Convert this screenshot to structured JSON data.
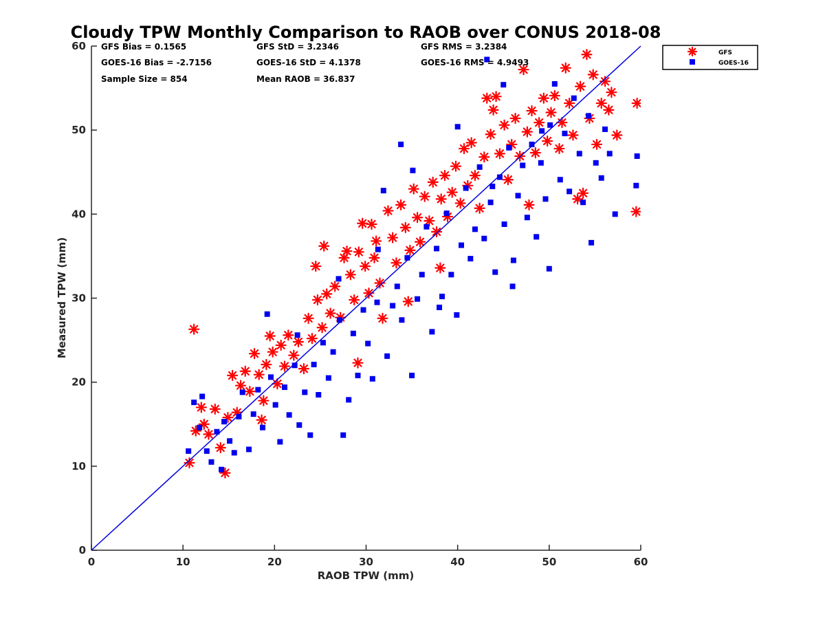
{
  "chart_data": {
    "type": "scatter",
    "title": "Cloudy TPW Monthly Comparison to RAOB over CONUS 2018-08",
    "xlabel": "RAOB TPW (mm)",
    "ylabel": "Measured TPW (mm)",
    "xlim": [
      0,
      60
    ],
    "ylim": [
      0,
      60
    ],
    "xticks": [
      "0",
      "10",
      "20",
      "30",
      "40",
      "50",
      "60"
    ],
    "yticks": [
      "0",
      "10",
      "20",
      "30",
      "40",
      "50",
      "60"
    ],
    "reference_line": {
      "type": "1:1",
      "x": [
        0,
        60
      ],
      "y": [
        0,
        60
      ],
      "color": "#0000dd"
    },
    "legend_position": "top-right, outside",
    "stats": {
      "gfs_bias": "GFS Bias = 0.1565",
      "gfs_std": "GFS StD = 3.2346",
      "gfs_rms": "GFS RMS = 3.2384",
      "goes_bias": "GOES-16 Bias = -2.7156",
      "goes_std": "GOES-16 StD = 4.1378",
      "goes_rms": "GOES-16 RMS = 4.9493",
      "sample_size": "Sample Size = 854",
      "mean_raob": "Mean RAOB = 36.837"
    },
    "series": [
      {
        "name": "GFS",
        "marker": "asterisk",
        "color": "#ff0000",
        "points": [
          [
            10.7,
            10.4
          ],
          [
            11.2,
            26.3
          ],
          [
            11.4,
            14.2
          ],
          [
            12,
            17
          ],
          [
            12.3,
            15
          ],
          [
            12.8,
            13.8
          ],
          [
            13.5,
            16.8
          ],
          [
            14.1,
            12.2
          ],
          [
            14.6,
            9.2
          ],
          [
            14.9,
            15.8
          ],
          [
            15.4,
            20.8
          ],
          [
            15.9,
            16.4
          ],
          [
            16.3,
            19.6
          ],
          [
            16.8,
            21.3
          ],
          [
            17.3,
            18.9
          ],
          [
            17.8,
            23.4
          ],
          [
            18.3,
            20.9
          ],
          [
            18.8,
            17.8
          ],
          [
            19.1,
            22.1
          ],
          [
            19.5,
            25.5
          ],
          [
            19.8,
            23.6
          ],
          [
            20.3,
            19.8
          ],
          [
            20.7,
            24.4
          ],
          [
            21.1,
            21.9
          ],
          [
            21.5,
            25.6
          ],
          [
            22.1,
            23.2
          ],
          [
            22.6,
            24.8
          ],
          [
            23.2,
            21.6
          ],
          [
            23.7,
            27.6
          ],
          [
            24.1,
            25.2
          ],
          [
            24.5,
            33.8
          ],
          [
            24.7,
            29.8
          ],
          [
            25.2,
            26.5
          ],
          [
            25.7,
            30.5
          ],
          [
            26.1,
            28.2
          ],
          [
            26.6,
            31.4
          ],
          [
            27.2,
            27.7
          ],
          [
            27.6,
            34.8
          ],
          [
            27.9,
            35.6
          ],
          [
            28.3,
            32.8
          ],
          [
            28.7,
            29.8
          ],
          [
            29.2,
            35.5
          ],
          [
            29.6,
            38.9
          ],
          [
            29.9,
            33.8
          ],
          [
            30.3,
            30.6
          ],
          [
            30.6,
            38.8
          ],
          [
            31.1,
            36.8
          ],
          [
            31.5,
            31.8
          ],
          [
            31.8,
            27.6
          ],
          [
            32.4,
            40.4
          ],
          [
            32.9,
            37.2
          ],
          [
            33.3,
            34.2
          ],
          [
            33.8,
            41.1
          ],
          [
            34.3,
            38.4
          ],
          [
            34.8,
            35.7
          ],
          [
            35.2,
            43
          ],
          [
            35.6,
            39.6
          ],
          [
            35.9,
            36.7
          ],
          [
            36.4,
            42.1
          ],
          [
            36.9,
            39.2
          ],
          [
            37.3,
            43.8
          ],
          [
            37.7,
            37.9
          ],
          [
            38.2,
            41.8
          ],
          [
            38.6,
            44.6
          ],
          [
            38.9,
            39.7
          ],
          [
            39.4,
            42.6
          ],
          [
            39.8,
            45.7
          ],
          [
            40.3,
            41.3
          ],
          [
            40.7,
            47.8
          ],
          [
            41.1,
            43.4
          ],
          [
            41.5,
            48.5
          ],
          [
            41.9,
            44.6
          ],
          [
            42.4,
            40.7
          ],
          [
            42.9,
            46.8
          ],
          [
            43.2,
            53.8
          ],
          [
            43.6,
            49.5
          ],
          [
            43.9,
            52.4
          ],
          [
            44.2,
            54
          ],
          [
            44.6,
            47.2
          ],
          [
            45.1,
            50.6
          ],
          [
            45.5,
            44.1
          ],
          [
            45.9,
            48.3
          ],
          [
            46.3,
            51.4
          ],
          [
            46.8,
            46.9
          ],
          [
            47.2,
            57.2
          ],
          [
            47.6,
            49.8
          ],
          [
            48.1,
            52.3
          ],
          [
            48.5,
            47.3
          ],
          [
            48.9,
            50.9
          ],
          [
            49.4,
            53.8
          ],
          [
            49.8,
            48.7
          ],
          [
            50.2,
            52.1
          ],
          [
            50.6,
            54.1
          ],
          [
            51.1,
            47.8
          ],
          [
            51.4,
            50.9
          ],
          [
            51.8,
            57.4
          ],
          [
            52.2,
            53.2
          ],
          [
            52.6,
            49.4
          ],
          [
            53.1,
            41.8
          ],
          [
            53.4,
            55.2
          ],
          [
            53.7,
            42.5
          ],
          [
            54.1,
            59
          ],
          [
            54.4,
            51.4
          ],
          [
            54.8,
            56.6
          ],
          [
            55.2,
            48.3
          ],
          [
            55.7,
            53.2
          ],
          [
            56.1,
            55.8
          ],
          [
            56.5,
            52.4
          ],
          [
            56.8,
            54.5
          ],
          [
            57.4,
            49.4
          ],
          [
            59.5,
            40.3
          ],
          [
            59.6,
            53.2
          ],
          [
            30.9,
            34.8
          ],
          [
            34.6,
            29.6
          ],
          [
            29.1,
            22.3
          ],
          [
            38.1,
            33.6
          ],
          [
            47.8,
            41.1
          ],
          [
            25.4,
            36.2
          ],
          [
            18.6,
            15.5
          ]
        ]
      },
      {
        "name": "GOES-16",
        "marker": "square",
        "color": "#0000ee",
        "points": [
          [
            10.6,
            11.8
          ],
          [
            11.2,
            17.6
          ],
          [
            11.8,
            14.6
          ],
          [
            12.1,
            18.3
          ],
          [
            12.6,
            11.8
          ],
          [
            13.1,
            10.5
          ],
          [
            13.7,
            14.1
          ],
          [
            14.2,
            9.6
          ],
          [
            14.5,
            15.3
          ],
          [
            15.1,
            13
          ],
          [
            15.6,
            11.6
          ],
          [
            16.1,
            15.9
          ],
          [
            16.5,
            18.8
          ],
          [
            17.2,
            12
          ],
          [
            17.7,
            16.2
          ],
          [
            18.2,
            19.1
          ],
          [
            18.7,
            14.6
          ],
          [
            19.2,
            28.1
          ],
          [
            19.6,
            20.6
          ],
          [
            20.1,
            17.3
          ],
          [
            20.6,
            12.9
          ],
          [
            21.1,
            19.4
          ],
          [
            21.6,
            16.1
          ],
          [
            22.2,
            22
          ],
          [
            22.7,
            14.9
          ],
          [
            23.3,
            18.8
          ],
          [
            23.9,
            13.7
          ],
          [
            24.3,
            22.1
          ],
          [
            24.8,
            18.5
          ],
          [
            25.3,
            24.7
          ],
          [
            25.9,
            20.5
          ],
          [
            26.4,
            23.6
          ],
          [
            27.1,
            27.4
          ],
          [
            27.5,
            13.7
          ],
          [
            28.1,
            17.9
          ],
          [
            28.6,
            25.8
          ],
          [
            29.1,
            20.8
          ],
          [
            29.7,
            28.6
          ],
          [
            30.2,
            24.6
          ],
          [
            30.7,
            20.4
          ],
          [
            31.2,
            29.5
          ],
          [
            31.9,
            42.8
          ],
          [
            32.3,
            23.1
          ],
          [
            32.9,
            29.1
          ],
          [
            33.4,
            31.4
          ],
          [
            33.9,
            27.4
          ],
          [
            34.5,
            34.8
          ],
          [
            35.1,
            45.2
          ],
          [
            35.6,
            29.9
          ],
          [
            36.1,
            32.8
          ],
          [
            36.6,
            38.5
          ],
          [
            37.2,
            26
          ],
          [
            37.7,
            35.9
          ],
          [
            38.3,
            30.2
          ],
          [
            38.8,
            40.1
          ],
          [
            39.3,
            32.8
          ],
          [
            39.9,
            28
          ],
          [
            40.4,
            36.3
          ],
          [
            40.9,
            43.1
          ],
          [
            41.4,
            34.7
          ],
          [
            41.9,
            38.2
          ],
          [
            42.4,
            45.6
          ],
          [
            42.9,
            37.1
          ],
          [
            43.2,
            58.4
          ],
          [
            43.6,
            41.4
          ],
          [
            44.1,
            33.1
          ],
          [
            44.6,
            44.4
          ],
          [
            45.1,
            38.8
          ],
          [
            45.6,
            47.9
          ],
          [
            46.1,
            34.5
          ],
          [
            46.6,
            42.2
          ],
          [
            47.1,
            45.8
          ],
          [
            47.6,
            39.6
          ],
          [
            48.1,
            48.3
          ],
          [
            48.6,
            37.3
          ],
          [
            49.1,
            46.1
          ],
          [
            49.6,
            41.8
          ],
          [
            50.1,
            50.6
          ],
          [
            50.6,
            55.5
          ],
          [
            51.2,
            44.1
          ],
          [
            51.7,
            49.6
          ],
          [
            52.2,
            42.7
          ],
          [
            52.7,
            53.8
          ],
          [
            53.3,
            47.2
          ],
          [
            53.7,
            41.4
          ],
          [
            54.3,
            51.7
          ],
          [
            54.6,
            36.6
          ],
          [
            55.1,
            46.1
          ],
          [
            55.7,
            44.3
          ],
          [
            56.1,
            50.1
          ],
          [
            56.6,
            47.2
          ],
          [
            57.2,
            40
          ],
          [
            59.5,
            43.4
          ],
          [
            59.6,
            46.9
          ],
          [
            46,
            31.4
          ],
          [
            50,
            33.5
          ],
          [
            40,
            50.4
          ],
          [
            45,
            55.4
          ],
          [
            35,
            20.8
          ],
          [
            38,
            28.9
          ],
          [
            33.8,
            48.3
          ],
          [
            27,
            32.3
          ],
          [
            22.5,
            25.6
          ],
          [
            31.3,
            35.8
          ],
          [
            49.2,
            49.9
          ],
          [
            43.8,
            43.3
          ]
        ]
      }
    ]
  }
}
